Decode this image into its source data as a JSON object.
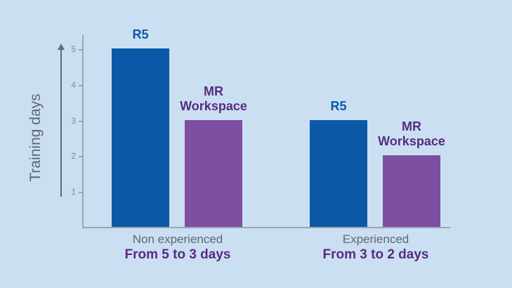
{
  "colors": {
    "background": "#cbdff2",
    "bar_blue": "#0b59a6",
    "bar_purple": "#7e4fa0",
    "label_blue": "#0b59a6",
    "label_purple": "#572c80",
    "text_gray": "#5d6872",
    "tick_gray": "#7f8b96",
    "axis_gray": "#9aa7b2",
    "arrow_gray": "#5f6b79"
  },
  "chart_data": {
    "type": "bar",
    "title": "",
    "xlabel": "",
    "ylabel": "Training days",
    "ylim": [
      0,
      5
    ],
    "yticks": [
      1,
      2,
      3,
      4,
      5
    ],
    "grid": false,
    "legend_position": "labels-above-bars",
    "categories": [
      "Non experienced",
      "Experienced"
    ],
    "annotations": [
      "From 5 to 3 days",
      "From 3 to 2 days"
    ],
    "series": [
      {
        "name": "R5",
        "values": [
          5,
          3
        ]
      },
      {
        "name": "MR Workspace",
        "values": [
          3,
          2
        ]
      }
    ]
  }
}
